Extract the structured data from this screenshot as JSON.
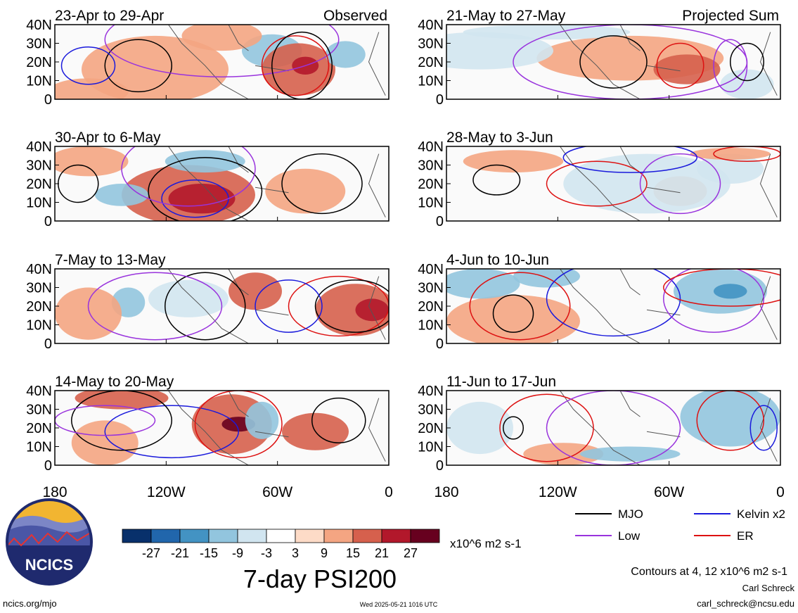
{
  "chart_data": {
    "type": "heatmap",
    "title": "7-day PSI200",
    "panels": [
      {
        "id": "p1",
        "label": "23-Apr to 29-Apr",
        "tag": "Observed"
      },
      {
        "id": "p2",
        "label": "21-May to 27-May",
        "tag": "Projected Sum"
      },
      {
        "id": "p3",
        "label": "30-Apr to 6-May",
        "tag": ""
      },
      {
        "id": "p4",
        "label": "28-May to 3-Jun",
        "tag": ""
      },
      {
        "id": "p5",
        "label": "7-May to 13-May",
        "tag": ""
      },
      {
        "id": "p6",
        "label": "4-Jun to 10-Jun",
        "tag": ""
      },
      {
        "id": "p7",
        "label": "14-May to 20-May",
        "tag": ""
      },
      {
        "id": "p8",
        "label": "11-Jun to 17-Jun",
        "tag": ""
      }
    ],
    "y_ticks": [
      "40N",
      "30N",
      "20N",
      "10N",
      "0"
    ],
    "x_ticks": [
      "180",
      "120W",
      "60W",
      "0"
    ],
    "colorbar": {
      "labels": [
        "-27",
        "-21",
        "-15",
        "-9",
        "-3",
        "3",
        "9",
        "15",
        "21",
        "27"
      ],
      "colors": [
        "#08306b",
        "#2166ac",
        "#4393c3",
        "#92c5de",
        "#d1e5f0",
        "#ffffff",
        "#fddbc7",
        "#f4a582",
        "#d6604d",
        "#b2182b",
        "#67001f"
      ],
      "units": "x10^6 m2 s-1"
    },
    "legend": [
      {
        "name": "MJO",
        "color": "#000000"
      },
      {
        "name": "Kelvin x2",
        "color": "#1a1adc"
      },
      {
        "name": "Low",
        "color": "#9933dd"
      },
      {
        "name": "ER",
        "color": "#dd1111"
      }
    ],
    "contour_note": "Contours at 4, 12 x10^6 m2 s-1"
  },
  "footer": {
    "logo_text": "NCICS",
    "site": "ncics.org/mjo",
    "timestamp": "Wed 2025-05-21 1016 UTC",
    "author": "Carl Schreck",
    "email": "carl_schreck@ncsu.edu"
  }
}
